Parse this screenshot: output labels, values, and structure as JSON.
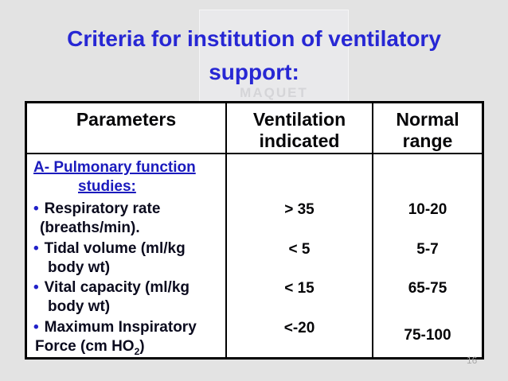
{
  "slide": {
    "title_line1": "Criteria for institution of ventilatory",
    "title_line2": "support:",
    "watermark_text": "MAQUET",
    "page_number": "16",
    "colors": {
      "slide_bg": "#e3e3e3",
      "cell_bg": "#ffffff",
      "title_blue": "#2727d4",
      "section_heading_blue": "#1b1bbd",
      "bullet_blue": "#2121c8",
      "body_text": "#0b0b1e",
      "border": "#000000"
    }
  },
  "table": {
    "bullet_glyph": "•",
    "header": {
      "parameters": "Parameters",
      "ventilation_indicated": "Ventilation indicated",
      "normal_range": "Normal range"
    },
    "section_heading": {
      "line1": "A- Pulmonary function",
      "line2": "studies:"
    },
    "rows": [
      {
        "param_line1": "Respiratory rate",
        "param_line2": "(breaths/min).",
        "ventilation": "> 35",
        "normal": "10-20"
      },
      {
        "param_line1": "Tidal volume (ml/kg",
        "param_line2": "body wt)",
        "ventilation": "< 5",
        "normal": "5-7"
      },
      {
        "param_line1": "Vital capacity (ml/kg",
        "param_line2": "body wt)",
        "ventilation": "< 15",
        "normal": "65-75"
      },
      {
        "param_line1": "Maximum Inspiratory",
        "param_line2_pre": "Force (cm HO",
        "param_line2_sub": "2",
        "param_line2_post": ")",
        "ventilation": "<-20",
        "normal": "75-100"
      }
    ]
  }
}
